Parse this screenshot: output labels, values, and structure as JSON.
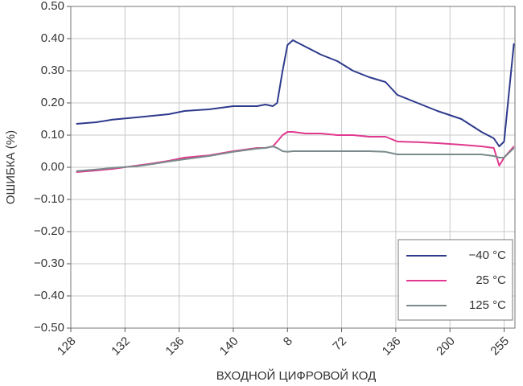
{
  "chart_data": {
    "type": "line",
    "xlabel": "ВХОДНОЙ ЦИФРОВОЙ КОД",
    "ylabel": "ОШИБКА (%)",
    "xlim": [
      0,
      8.2
    ],
    "ylim": [
      -0.5,
      0.5
    ],
    "xticks": [
      {
        "value": 0,
        "label": "128"
      },
      {
        "value": 1,
        "label": "132"
      },
      {
        "value": 2,
        "label": "136"
      },
      {
        "value": 3,
        "label": "140"
      },
      {
        "value": 4,
        "label": "8"
      },
      {
        "value": 5,
        "label": "72"
      },
      {
        "value": 6,
        "label": "136"
      },
      {
        "value": 7,
        "label": "200"
      },
      {
        "value": 8,
        "label": "255"
      }
    ],
    "yticks": [
      {
        "value": -0.5,
        "label": "−0.50"
      },
      {
        "value": -0.4,
        "label": "−0.40"
      },
      {
        "value": -0.3,
        "label": "−0.30"
      },
      {
        "value": -0.2,
        "label": "−0.20"
      },
      {
        "value": -0.1,
        "label": "−0.10"
      },
      {
        "value": 0,
        "label": "0.00"
      },
      {
        "value": 0.1,
        "label": "0.10"
      },
      {
        "value": 0.2,
        "label": "0.20"
      },
      {
        "value": 0.3,
        "label": "0.30"
      },
      {
        "value": 0.4,
        "label": "0.40"
      },
      {
        "value": 0.5,
        "label": "0.50"
      }
    ],
    "grid": true,
    "legend": "lower right",
    "x": [
      0.1,
      0.47,
      0.77,
      1.21,
      1.51,
      1.81,
      2.1,
      2.55,
      3,
      3.44,
      3.59,
      3.73,
      3.81,
      3.91,
      4,
      4.1,
      4.33,
      4.62,
      4.92,
      5.21,
      5.51,
      5.81,
      6.03,
      6.4,
      6.77,
      7.21,
      7.58,
      7.81,
      7.91,
      8,
      8.18
    ],
    "series": [
      {
        "name": "−40 °C",
        "color": "#2e3a8c",
        "values": [
          0.135,
          0.14,
          0.148,
          0.155,
          0.16,
          0.165,
          0.175,
          0.18,
          0.19,
          0.19,
          0.195,
          0.19,
          0.2,
          0.3,
          0.38,
          0.395,
          0.375,
          0.35,
          0.33,
          0.3,
          0.28,
          0.265,
          0.225,
          0.2,
          0.175,
          0.15,
          0.11,
          0.09,
          0.065,
          0.08,
          0.385
        ]
      },
      {
        "name": "25 °C",
        "color": "#e0398f",
        "values": [
          -0.015,
          -0.01,
          -0.005,
          0.005,
          0.012,
          0.02,
          0.03,
          0.037,
          0.05,
          0.06,
          0.06,
          0.065,
          0.08,
          0.1,
          0.11,
          0.11,
          0.105,
          0.105,
          0.1,
          0.1,
          0.095,
          0.095,
          0.08,
          0.078,
          0.075,
          0.07,
          0.065,
          0.06,
          0.005,
          0.03,
          0.065
        ]
      },
      {
        "name": "125 °C",
        "color": "#7a8a8a",
        "values": [
          -0.012,
          -0.007,
          -0.002,
          0.003,
          0.01,
          0.018,
          0.025,
          0.035,
          0.048,
          0.058,
          0.06,
          0.065,
          0.06,
          0.05,
          0.048,
          0.05,
          0.05,
          0.05,
          0.05,
          0.05,
          0.05,
          0.048,
          0.04,
          0.04,
          0.04,
          0.04,
          0.04,
          0.035,
          0.03,
          0.03,
          0.06
        ]
      }
    ]
  }
}
